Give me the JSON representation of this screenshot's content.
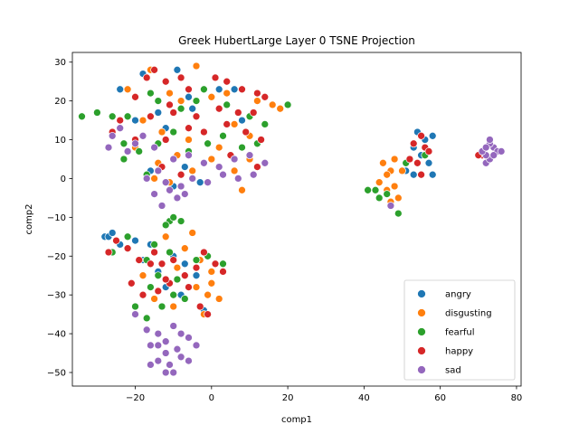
{
  "chart_data": {
    "type": "scatter",
    "title": "Greek HubertLarge Layer 0 TSNE Projection",
    "xlabel": "comp1",
    "ylabel": "comp2",
    "xlim": [
      -36.5,
      81.2
    ],
    "ylim": [
      -53.5,
      32.5
    ],
    "xticks": [
      -20,
      0,
      20,
      40,
      60,
      80
    ],
    "yticks": [
      -50,
      -40,
      -30,
      -20,
      -10,
      0,
      10,
      20,
      30
    ],
    "grid": false,
    "legend_position": "lower-right",
    "series": [
      {
        "name": "angry",
        "color": "#1f77b4",
        "points": [
          [
            -18,
            27
          ],
          [
            -12,
            25
          ],
          [
            -9,
            28
          ],
          [
            -24,
            23
          ],
          [
            -6,
            21
          ],
          [
            2,
            23
          ],
          [
            6,
            23
          ],
          [
            -14,
            17
          ],
          [
            -20,
            15
          ],
          [
            -12,
            13
          ],
          [
            -5,
            18
          ],
          [
            -2,
            12
          ],
          [
            8,
            15
          ],
          [
            -16,
            2
          ],
          [
            -10,
            -2
          ],
          [
            -7,
            3
          ],
          [
            -3,
            -1
          ],
          [
            54,
            12
          ],
          [
            56,
            10
          ],
          [
            58,
            11
          ],
          [
            53,
            8
          ],
          [
            55,
            6
          ],
          [
            57,
            4
          ],
          [
            58,
            1
          ],
          [
            53,
            1
          ],
          [
            51,
            2
          ],
          [
            -28,
            -15
          ],
          [
            -24,
            -17
          ],
          [
            -20,
            -16
          ],
          [
            -18,
            -21
          ],
          [
            -14,
            -24
          ],
          [
            -10,
            -20
          ],
          [
            -8,
            -30
          ],
          [
            -12,
            -28
          ],
          [
            -4,
            -25
          ],
          [
            -2,
            -34
          ],
          [
            -16,
            -17
          ],
          [
            -27,
            -15
          ],
          [
            -26,
            -14
          ],
          [
            -7,
            -22
          ]
        ]
      },
      {
        "name": "disgusting",
        "color": "#ff7f0e",
        "points": [
          [
            -16,
            28
          ],
          [
            -11,
            22
          ],
          [
            -4,
            29
          ],
          [
            -22,
            23
          ],
          [
            -8,
            20
          ],
          [
            0,
            21
          ],
          [
            4,
            22
          ],
          [
            12,
            20
          ],
          [
            16,
            19
          ],
          [
            18,
            18
          ],
          [
            -18,
            15
          ],
          [
            -13,
            12
          ],
          [
            -6,
            10
          ],
          [
            2,
            8
          ],
          [
            6,
            14
          ],
          [
            10,
            11
          ],
          [
            -20,
            8
          ],
          [
            -14,
            4
          ],
          [
            -9,
            6
          ],
          [
            -5,
            2
          ],
          [
            0,
            5
          ],
          [
            6,
            2
          ],
          [
            10,
            5
          ],
          [
            8,
            -3
          ],
          [
            -11,
            -1
          ],
          [
            -15,
            0
          ],
          [
            45,
            4
          ],
          [
            48,
            5
          ],
          [
            47,
            2
          ],
          [
            46,
            1
          ],
          [
            44,
            -1
          ],
          [
            48,
            -2
          ],
          [
            46,
            -3
          ],
          [
            49,
            -5
          ],
          [
            47,
            -6
          ],
          [
            50,
            2
          ],
          [
            -12,
            -15
          ],
          [
            -7,
            -18
          ],
          [
            -5,
            -14
          ],
          [
            -3,
            -21
          ],
          [
            0,
            -27
          ],
          [
            -1,
            -30
          ],
          [
            -2,
            -35
          ],
          [
            -10,
            -33
          ],
          [
            -15,
            -31
          ],
          [
            -18,
            -25
          ],
          [
            -9,
            -23
          ],
          [
            2,
            -31
          ],
          [
            0,
            -24
          ],
          [
            -4,
            -28
          ]
        ]
      },
      {
        "name": "fearful",
        "color": "#2ca02c",
        "points": [
          [
            -34,
            16
          ],
          [
            -30,
            17
          ],
          [
            -26,
            16
          ],
          [
            -22,
            16
          ],
          [
            -16,
            22
          ],
          [
            -14,
            20
          ],
          [
            -8,
            18
          ],
          [
            -4,
            20
          ],
          [
            -2,
            23
          ],
          [
            4,
            19
          ],
          [
            10,
            16
          ],
          [
            14,
            14
          ],
          [
            20,
            19
          ],
          [
            -23,
            9
          ],
          [
            -19,
            7
          ],
          [
            -14,
            9
          ],
          [
            -10,
            12
          ],
          [
            -6,
            7
          ],
          [
            -1,
            9
          ],
          [
            3,
            11
          ],
          [
            8,
            8
          ],
          [
            12,
            9
          ],
          [
            -23,
            5
          ],
          [
            -17,
            1
          ],
          [
            43,
            -3
          ],
          [
            41,
            -3
          ],
          [
            44,
            -5
          ],
          [
            46,
            -4
          ],
          [
            49,
            -9
          ],
          [
            51,
            4
          ],
          [
            56,
            6
          ],
          [
            -11,
            -11
          ],
          [
            -10,
            -10
          ],
          [
            -8,
            -11
          ],
          [
            -12,
            -12
          ],
          [
            -22,
            -15
          ],
          [
            -15,
            -17
          ],
          [
            -11,
            -19
          ],
          [
            -17,
            -21
          ],
          [
            -14,
            -25
          ],
          [
            -9,
            -26
          ],
          [
            -20,
            -33
          ],
          [
            -17,
            -36
          ],
          [
            -16,
            -28
          ],
          [
            -10,
            -30
          ],
          [
            -7,
            -31
          ],
          [
            -4,
            -21
          ],
          [
            -1,
            -20
          ],
          [
            3,
            -22
          ],
          [
            -26,
            -19
          ],
          [
            -13,
            -33
          ]
        ]
      },
      {
        "name": "happy",
        "color": "#d62728",
        "points": [
          [
            -15,
            28
          ],
          [
            -17,
            26
          ],
          [
            -12,
            25
          ],
          [
            -8,
            26
          ],
          [
            -20,
            21
          ],
          [
            -11,
            19
          ],
          [
            -6,
            23
          ],
          [
            1,
            26
          ],
          [
            4,
            25
          ],
          [
            8,
            23
          ],
          [
            12,
            22
          ],
          [
            14,
            21
          ],
          [
            -24,
            15
          ],
          [
            -16,
            16
          ],
          [
            -10,
            17
          ],
          [
            -4,
            16
          ],
          [
            2,
            18
          ],
          [
            7,
            17
          ],
          [
            11,
            17
          ],
          [
            -26,
            12
          ],
          [
            -20,
            10
          ],
          [
            -12,
            10
          ],
          [
            -6,
            13
          ],
          [
            -2,
            12
          ],
          [
            4,
            14
          ],
          [
            9,
            12
          ],
          [
            13,
            10
          ],
          [
            -8,
            1
          ],
          [
            -13,
            3
          ],
          [
            5,
            6
          ],
          [
            12,
            3
          ],
          [
            53,
            9
          ],
          [
            55,
            11
          ],
          [
            56,
            8
          ],
          [
            52,
            5
          ],
          [
            54,
            4
          ],
          [
            57,
            7
          ],
          [
            55,
            1
          ],
          [
            71,
            6
          ],
          [
            70,
            6
          ],
          [
            -25,
            -16
          ],
          [
            -22,
            -18
          ],
          [
            -19,
            -21
          ],
          [
            -16,
            -22
          ],
          [
            -13,
            -22
          ],
          [
            -10,
            -21
          ],
          [
            -7,
            -25
          ],
          [
            -4,
            -23
          ],
          [
            -2,
            -19
          ],
          [
            1,
            -22
          ],
          [
            3,
            -24
          ],
          [
            -21,
            -27
          ],
          [
            -18,
            -30
          ],
          [
            -14,
            -29
          ],
          [
            -11,
            -27
          ],
          [
            -6,
            -28
          ],
          [
            -3,
            -33
          ],
          [
            -1,
            -35
          ],
          [
            -15,
            -19
          ],
          [
            -27,
            -19
          ],
          [
            -12,
            -26
          ]
        ]
      },
      {
        "name": "sad",
        "color": "#9467bd",
        "points": [
          [
            -26,
            11
          ],
          [
            -24,
            13
          ],
          [
            -20,
            9
          ],
          [
            -18,
            11
          ],
          [
            -27,
            8
          ],
          [
            -22,
            7
          ],
          [
            -15,
            8
          ],
          [
            -10,
            5
          ],
          [
            -6,
            6
          ],
          [
            -2,
            4
          ],
          [
            2,
            3
          ],
          [
            6,
            5
          ],
          [
            10,
            6
          ],
          [
            14,
            4
          ],
          [
            -14,
            2
          ],
          [
            -12,
            -1
          ],
          [
            -8,
            -2
          ],
          [
            -5,
            0
          ],
          [
            -1,
            -1
          ],
          [
            3,
            1
          ],
          [
            7,
            0
          ],
          [
            11,
            1
          ],
          [
            -17,
            0
          ],
          [
            -15,
            -4
          ],
          [
            -9,
            -5
          ],
          [
            -13,
            -7
          ],
          [
            -11,
            -3
          ],
          [
            -7,
            -4
          ],
          [
            47,
            -7
          ],
          [
            72,
            4
          ],
          [
            73,
            5
          ],
          [
            74,
            8
          ],
          [
            75,
            7
          ],
          [
            72,
            6
          ],
          [
            73,
            9
          ],
          [
            71,
            7
          ],
          [
            74,
            6
          ],
          [
            76,
            7
          ],
          [
            72,
            8
          ],
          [
            73,
            10
          ],
          [
            -20,
            -35
          ],
          [
            -17,
            -39
          ],
          [
            -14,
            -40
          ],
          [
            -12,
            -42
          ],
          [
            -10,
            -38
          ],
          [
            -8,
            -40
          ],
          [
            -6,
            -41
          ],
          [
            -4,
            -43
          ],
          [
            -9,
            -44
          ],
          [
            -12,
            -45
          ],
          [
            -14,
            -47
          ],
          [
            -16,
            -48
          ],
          [
            -11,
            -48
          ],
          [
            -8,
            -46
          ],
          [
            -6,
            -47
          ],
          [
            -14,
            -43
          ],
          [
            -16,
            -43
          ],
          [
            -10,
            -50
          ],
          [
            -12,
            -50
          ]
        ]
      }
    ]
  }
}
